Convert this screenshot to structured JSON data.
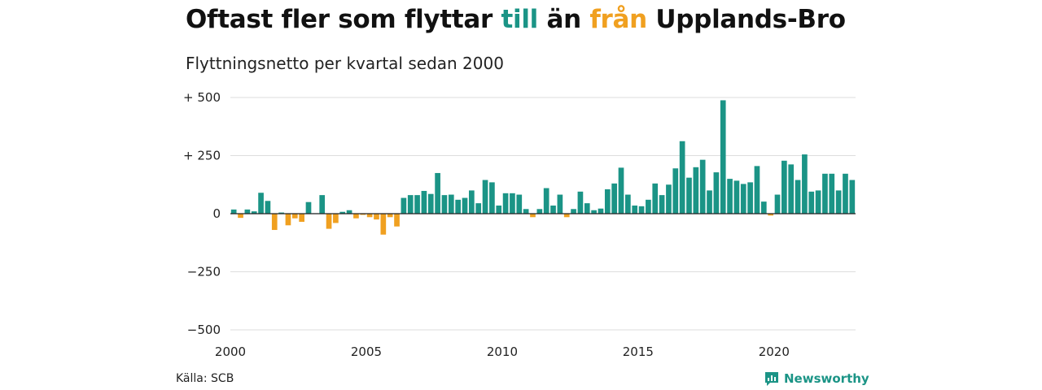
{
  "title": {
    "part1": "Oftast fler som flyttar ",
    "word_to": "till",
    "part2": " än ",
    "word_from": "från",
    "part3": " Upplands-Bro"
  },
  "subtitle": "Flyttningsnetto per kvartal sedan 2000",
  "source": "Källa: SCB",
  "brand": {
    "name": "Newsworthy",
    "icon": "newsworthy-logo-icon"
  },
  "colors": {
    "positive": "#1b9486",
    "negative": "#f0a020",
    "grid": "#dddddd",
    "baseline": "#222222"
  },
  "chart_data": {
    "type": "bar",
    "x_start": 2000,
    "x_end": 2023,
    "x_ticks": [
      2000,
      2005,
      2010,
      2015,
      2020
    ],
    "x_tick_labels": [
      "2000",
      "2005",
      "2010",
      "2015",
      "2020"
    ],
    "ylim": [
      -500,
      500
    ],
    "y_ticks": [
      500,
      250,
      0,
      -250,
      -500
    ],
    "y_tick_labels": [
      "+ 500",
      "+ 250",
      "0",
      "−250",
      "−500"
    ],
    "grid": true,
    "categories": [
      "2000 K1",
      "2000 K2",
      "2000 K3",
      "2000 K4",
      "2001 K1",
      "2001 K2",
      "2001 K3",
      "2001 K4",
      "2002 K1",
      "2002 K2",
      "2002 K3",
      "2002 K4",
      "2003 K1",
      "2003 K2",
      "2003 K3",
      "2003 K4",
      "2004 K1",
      "2004 K2",
      "2004 K3",
      "2004 K4",
      "2005 K1",
      "2005 K2",
      "2005 K3",
      "2005 K4",
      "2006 K1",
      "2006 K2",
      "2006 K3",
      "2006 K4",
      "2007 K1",
      "2007 K2",
      "2007 K3",
      "2007 K4",
      "2008 K1",
      "2008 K2",
      "2008 K3",
      "2008 K4",
      "2009 K1",
      "2009 K2",
      "2009 K3",
      "2009 K4",
      "2010 K1",
      "2010 K2",
      "2010 K3",
      "2010 K4",
      "2011 K1",
      "2011 K2",
      "2011 K3",
      "2011 K4",
      "2012 K1",
      "2012 K2",
      "2012 K3",
      "2012 K4",
      "2013 K1",
      "2013 K2",
      "2013 K3",
      "2013 K4",
      "2014 K1",
      "2014 K2",
      "2014 K3",
      "2014 K4",
      "2015 K1",
      "2015 K2",
      "2015 K3",
      "2015 K4",
      "2016 K1",
      "2016 K2",
      "2016 K3",
      "2016 K4",
      "2017 K1",
      "2017 K2",
      "2017 K3",
      "2017 K4",
      "2018 K1",
      "2018 K2",
      "2018 K3",
      "2018 K4",
      "2019 K1",
      "2019 K2",
      "2019 K3",
      "2019 K4",
      "2020 K1",
      "2020 K2",
      "2020 K3",
      "2020 K4",
      "2021 K1",
      "2021 K2",
      "2021 K3",
      "2021 K4",
      "2022 K1",
      "2022 K2",
      "2022 K3",
      "2022 K4"
    ],
    "values": [
      18,
      -18,
      18,
      10,
      90,
      55,
      -70,
      5,
      -50,
      -20,
      -35,
      50,
      2,
      80,
      -65,
      -40,
      8,
      15,
      -20,
      -5,
      -15,
      -25,
      -90,
      -15,
      -55,
      68,
      80,
      80,
      98,
      85,
      175,
      80,
      82,
      60,
      68,
      100,
      45,
      145,
      135,
      35,
      88,
      88,
      82,
      20,
      -15,
      20,
      110,
      35,
      82,
      -15,
      20,
      95,
      45,
      15,
      22,
      105,
      130,
      198,
      82,
      35,
      32,
      60,
      130,
      80,
      125,
      195,
      312,
      155,
      200,
      232,
      100,
      178,
      488,
      150,
      142,
      128,
      135,
      205,
      52,
      -8,
      82,
      228,
      212,
      145,
      255,
      95,
      100,
      172,
      172,
      100,
      172,
      145
    ]
  }
}
